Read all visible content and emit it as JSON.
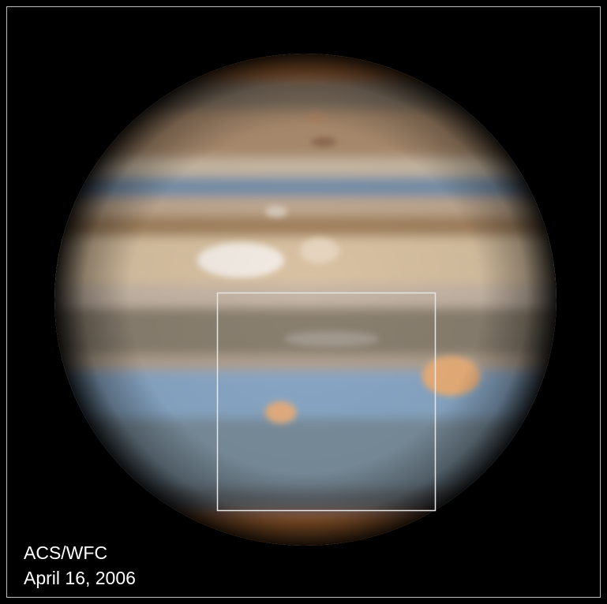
{
  "caption": {
    "instrument": "ACS/WFC",
    "date": "April 16, 2006"
  }
}
